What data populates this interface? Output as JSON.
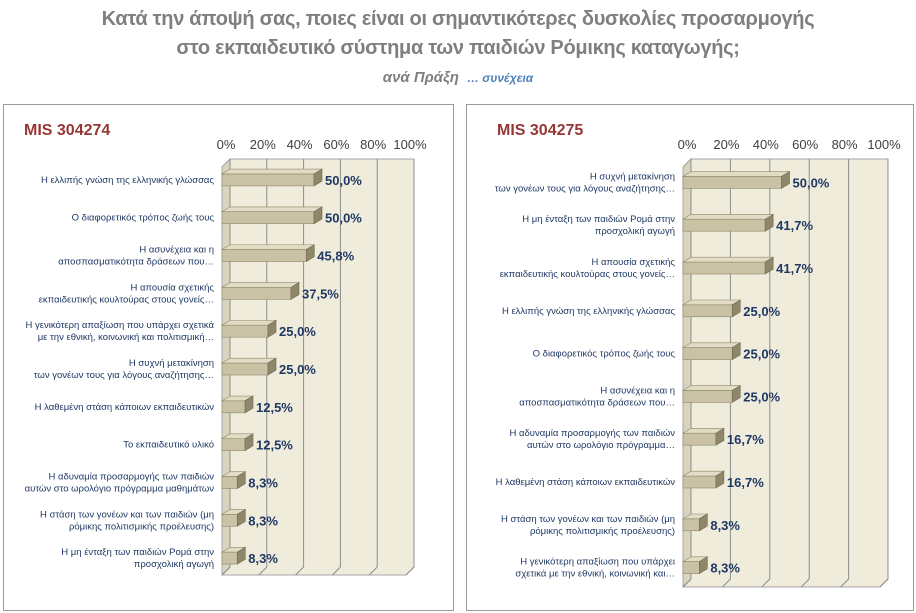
{
  "header": {
    "title_line1": "Κατά την άποψή σας, ποιες είναι οι σημαντικότερες δυσκολίες προσαρμογής",
    "title_line2": "στο εκπαιδευτικό σύστημα των παιδιών Ρόμικης καταγωγής;",
    "subtitle": "ανά Πράξη",
    "subtitle_cont": "… συνέχεια"
  },
  "colors": {
    "bar_front": "#c9c2a4",
    "bar_top": "#e2dcc4",
    "bar_side": "#8f876a",
    "back_wall": "#f0ecdc",
    "title_red": "#953735",
    "label_blue": "#1f3864"
  },
  "chart_data": [
    {
      "type": "bar",
      "orientation": "horizontal",
      "title": "MIS 304274",
      "xlim": [
        0,
        100
      ],
      "ticks": [
        "0%",
        "20%",
        "40%",
        "60%",
        "80%",
        "100%"
      ],
      "grid": true,
      "categories": [
        [
          "Η ελλιπής γνώση της ελληνικής γλώσσας"
        ],
        [
          "Ο διαφορετικός τρόπος ζωής τους"
        ],
        [
          "Η ασυνέχεια και η",
          "αποσπασματικότητα δράσεων που…"
        ],
        [
          "Η απουσία σχετικής",
          "εκπαιδευτικής κουλτούρας στους γονείς…"
        ],
        [
          "Η γενικότερη απαξίωση που υπάρχει σχετικά",
          "με την εθνική, κοινωνική και πολιτισμική…"
        ],
        [
          "Η συχνή μετακίνηση",
          "των γονέων τους για λόγους αναζήτησης…"
        ],
        [
          "Η λαθεμένη στάση κάποιων εκπαιδευτικών"
        ],
        [
          "Το εκπαιδευτικό υλικό"
        ],
        [
          "Η αδυναμία προσαρμογής των παιδιών",
          "αυτών στο ωρολόγιο πρόγραμμα μαθημάτων"
        ],
        [
          "Η στάση των γονέων και των παιδιών (μη",
          "ρόμικης πολιτισμικής προέλευσης)"
        ],
        [
          "Η μη ένταξη των παιδιών Ρομά στην",
          "προσχολική αγωγή"
        ]
      ],
      "values": [
        50.0,
        50.0,
        45.8,
        37.5,
        25.0,
        25.0,
        12.5,
        12.5,
        8.3,
        8.3,
        8.3
      ],
      "value_labels": [
        "50,0%",
        "50,0%",
        "45,8%",
        "37,5%",
        "25,0%",
        "25,0%",
        "12,5%",
        "12,5%",
        "8,3%",
        "8,3%",
        "8,3%"
      ]
    },
    {
      "type": "bar",
      "orientation": "horizontal",
      "title": "MIS 304275",
      "xlim": [
        0,
        100
      ],
      "ticks": [
        "0%",
        "20%",
        "40%",
        "60%",
        "80%",
        "100%"
      ],
      "grid": true,
      "categories": [
        [
          "Η συχνή μετακίνηση",
          "των γονέων τους για λόγους αναζήτησης…"
        ],
        [
          "Η μη ένταξη των παιδιών Ρομά στην",
          "προσχολική αγωγή"
        ],
        [
          "Η απουσία σχετικής",
          "εκπαιδευτικής κουλτούρας στους γονείς…"
        ],
        [
          "Η ελλιπής γνώση της ελληνικής γλώσσας"
        ],
        [
          "Ο διαφορετικός τρόπος ζωής τους"
        ],
        [
          "Η ασυνέχεια και η",
          "αποσπασματικότητα δράσεων που…"
        ],
        [
          "Η αδυναμία προσαρμογής των παιδιών",
          "αυτών στο ωρολόγιο πρόγραμμα…"
        ],
        [
          "Η λαθεμένη στάση κάποιων εκπαιδευτικών"
        ],
        [
          "Η στάση των γονέων και των παιδιών (μη",
          "ρόμικης πολιτισμικής προέλευσης)"
        ],
        [
          "Η γενικότερη απαξίωση που υπάρχει",
          "σχετικά με την εθνική, κοινωνική και…"
        ]
      ],
      "values": [
        50.0,
        41.7,
        41.7,
        25.0,
        25.0,
        25.0,
        16.7,
        16.7,
        8.3,
        8.3
      ],
      "value_labels": [
        "50,0%",
        "41,7%",
        "41,7%",
        "25,0%",
        "25,0%",
        "25,0%",
        "16,7%",
        "16,7%",
        "8,3%",
        "8,3%"
      ]
    }
  ]
}
